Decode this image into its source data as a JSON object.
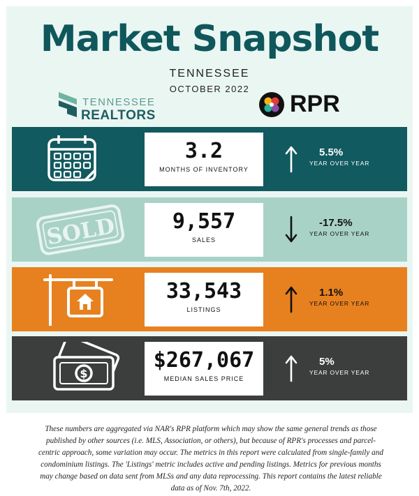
{
  "header": {
    "title": "Market Snapshot",
    "region": "TENNESSEE",
    "period": "OCTOBER 2022"
  },
  "logos": {
    "tn_realtors_top": "TENNESSEE",
    "tn_realtors_bottom": "REALTORS",
    "rpr": "RPR"
  },
  "metrics": [
    {
      "value": "3.2",
      "label": "MONTHS OF INVENTORY",
      "change": "5.5%",
      "change_label": "YEAR OVER YEAR",
      "direction": "up",
      "icon": "calendar-icon",
      "color": "#115a5f"
    },
    {
      "value": "9,557",
      "label": "SALES",
      "change": "-17.5%",
      "change_label": "YEAR OVER YEAR",
      "direction": "down",
      "icon": "sold-stamp-icon",
      "color": "#a9d2c7"
    },
    {
      "value": "33,543",
      "label": "LISTINGS",
      "change": "1.1%",
      "change_label": "YEAR OVER YEAR",
      "direction": "up",
      "icon": "house-sign-icon",
      "color": "#e7811f"
    },
    {
      "value": "$267,067",
      "label": "MEDIAN SALES PRICE",
      "change": "5%",
      "change_label": "YEAR OVER YEAR",
      "direction": "up",
      "icon": "money-icon",
      "color": "#3c3d3d"
    }
  ],
  "icon_text": {
    "sold": "SOLD"
  },
  "disclaimer": "These numbers are aggregated via NAR's RPR platform which may show the same general trends as those published by other sources (i.e. MLS, Association, or others), but because of RPR's processes and parcel-centric approach, some variation may occur. The metrics in this report were calculated from single-family and condominium listings. The 'Listings' metric includes active and pending listings. Metrics for previous months may change based on data sent from MLSs and any data reprocessing. This report contains the latest reliable data as of Nov. 7th, 2022."
}
